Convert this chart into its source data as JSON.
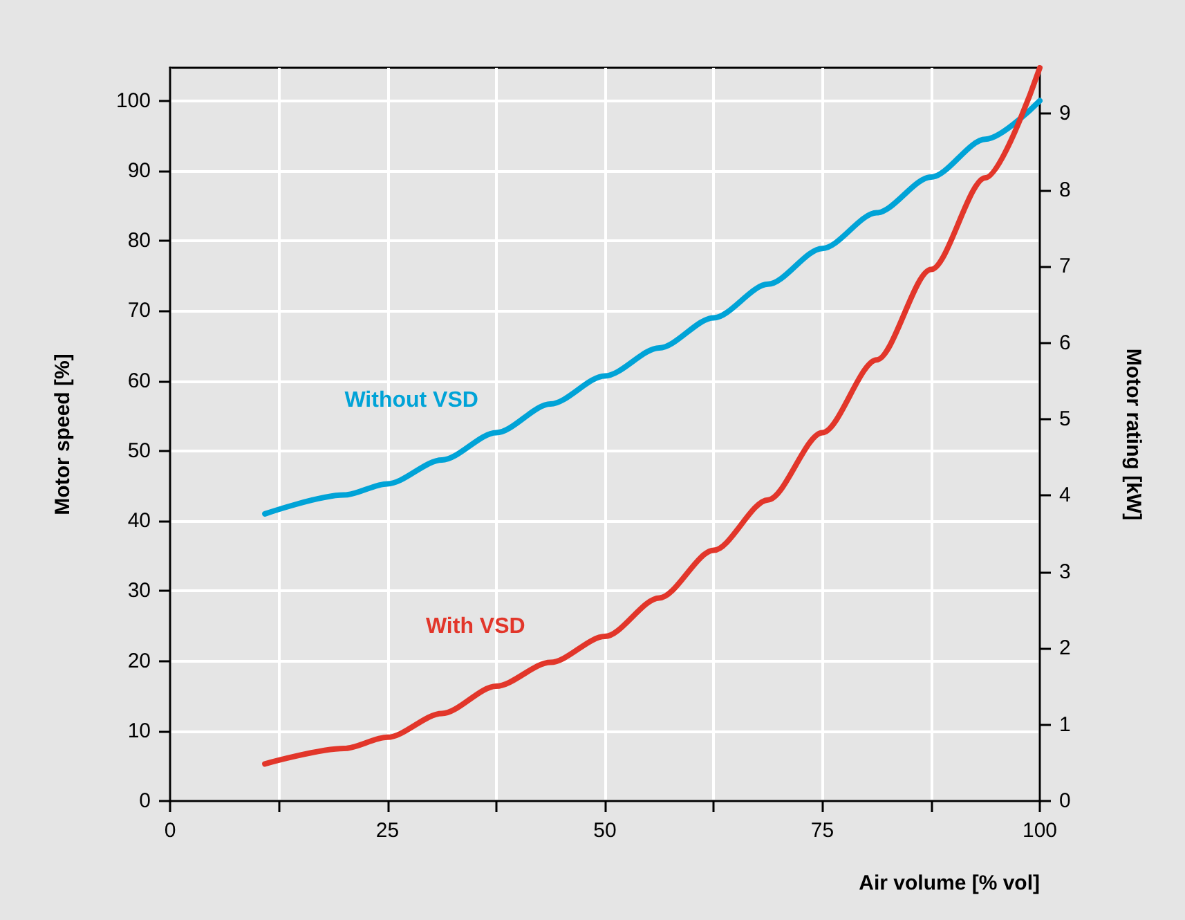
{
  "chart_data": {
    "type": "line",
    "xlabel": "Air volume [% vol]",
    "ylabel": "Motor speed [%]",
    "y2label": "Motor rating [kW]",
    "x": [
      10.9,
      20,
      25,
      31.25,
      37.5,
      43.75,
      50,
      56.25,
      62.5,
      68.75,
      75,
      81.25,
      87.5,
      93.75,
      100
    ],
    "series": [
      {
        "name": "Without VSD",
        "color": "#00a3d7",
        "values": [
          41,
          43.7,
          45.3,
          48.7,
          52.6,
          56.7,
          60.7,
          64.7,
          69,
          73.8,
          78.9,
          84,
          89.1,
          94.5,
          100
        ]
      },
      {
        "name": "With VSD",
        "color": "#e2362a",
        "values": [
          5.3,
          7.5,
          9.1,
          12.5,
          16.4,
          19.8,
          23.5,
          29,
          35.8,
          43,
          52.6,
          63,
          75.9,
          89,
          104.7
        ]
      }
    ],
    "xlim": [
      0,
      100
    ],
    "xticks": [
      0,
      {
        "value": 12.5,
        "label": null
      },
      25,
      {
        "value": 37.5,
        "label": null
      },
      50,
      {
        "value": 62.5,
        "label": null
      },
      75,
      {
        "value": 87.5,
        "label": null
      },
      100
    ],
    "ylim": [
      0,
      104.7
    ],
    "yticks": [
      0,
      10,
      20,
      30,
      40,
      50,
      60,
      70,
      80,
      90,
      100
    ],
    "y2lim": [
      0,
      9.6
    ],
    "y2ticks": [
      0,
      1,
      2,
      3,
      4,
      5,
      6,
      7,
      8,
      9
    ],
    "grid": true,
    "legend": false,
    "marker": "none",
    "line_style": "solid"
  }
}
